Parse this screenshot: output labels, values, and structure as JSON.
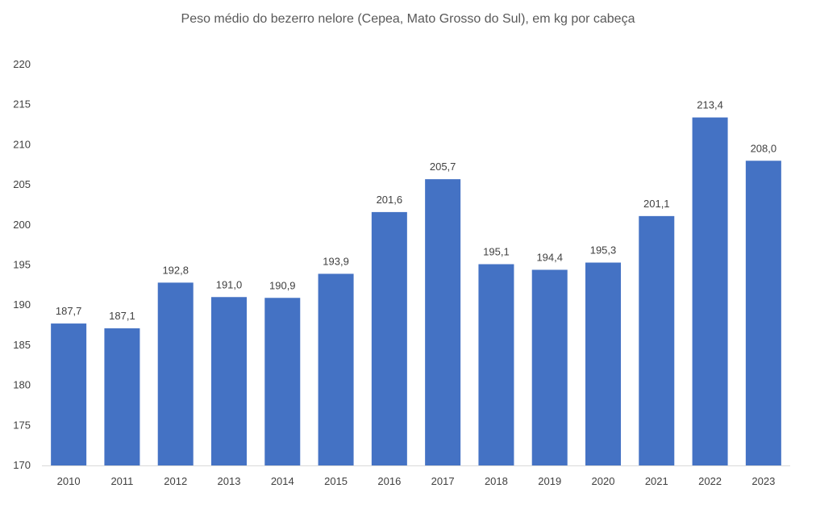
{
  "chart_data": {
    "type": "bar",
    "title": "Peso médio do bezerro nelore (Cepea, Mato Grosso do Sul), em kg por cabeça",
    "xlabel": "",
    "ylabel": "",
    "categories": [
      "2010",
      "2011",
      "2012",
      "2013",
      "2014",
      "2015",
      "2016",
      "2017",
      "2018",
      "2019",
      "2020",
      "2021",
      "2022",
      "2023"
    ],
    "values": [
      187.7,
      187.1,
      192.8,
      191.0,
      190.9,
      193.9,
      201.6,
      205.7,
      195.1,
      194.4,
      195.3,
      201.1,
      213.4,
      208.0
    ],
    "data_labels": [
      "187,7",
      "187,1",
      "192,8",
      "191,0",
      "190,9",
      "193,9",
      "201,6",
      "205,7",
      "195,1",
      "194,4",
      "195,3",
      "201,1",
      "213,4",
      "208,0"
    ],
    "ylim": [
      170,
      220
    ],
    "yticks": [
      170,
      175,
      180,
      185,
      190,
      195,
      200,
      205,
      210,
      215,
      220
    ],
    "grid": false,
    "legend": "none",
    "bar_color": "#4472C4",
    "axis_color": "#d9d9d9"
  }
}
